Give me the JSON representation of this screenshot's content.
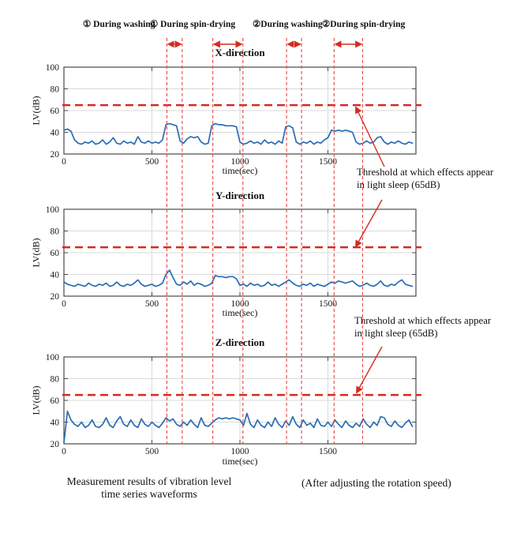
{
  "colors": {
    "waveform": "#2b6cb5",
    "threshold": "#d42b20",
    "event_marker": "#ee4444",
    "grid": "#dadada",
    "axis": "#4a4a4a",
    "tick_text": "#1a1a1a"
  },
  "events": [
    {
      "label": "① During washing",
      "start_sec": 585,
      "end_sec": 672
    },
    {
      "label": "① During spin-drying",
      "start_sec": 846,
      "end_sec": 1017
    },
    {
      "label": "②During washing",
      "start_sec": 1265,
      "end_sec": 1350
    },
    {
      "label": "②During spin-drying",
      "start_sec": 1535,
      "end_sec": 1697
    }
  ],
  "annotations": {
    "threshold_note_1": "Threshold at which effects appear\nin light sleep (65dB)",
    "threshold_note_2": "Threshold at which effects appear\nin light sleep (65dB)"
  },
  "captions": {
    "left": "Measurement results of vibration level\ntime series waveforms",
    "right": "(After adjusting the rotation speed)"
  },
  "chart_data": [
    {
      "type": "line",
      "title": "X-direction",
      "xlabel": "time(sec)",
      "ylabel": "LV(dB)",
      "xlim": [
        0,
        2000
      ],
      "ylim": [
        20,
        100
      ],
      "xticks": [
        0,
        500,
        1000,
        1500
      ],
      "yticks": [
        20,
        40,
        60,
        80,
        100
      ],
      "grid": true,
      "threshold_db": 65,
      "x_start": 0,
      "x_step": 20,
      "values": [
        42,
        43,
        41,
        33,
        30,
        29,
        31,
        30,
        32,
        29,
        30,
        33,
        29,
        31,
        35,
        30,
        29,
        32,
        30,
        31,
        29,
        36,
        31,
        30,
        32,
        30,
        31,
        30,
        33,
        47,
        48,
        47,
        46,
        32,
        30,
        34,
        36,
        35,
        36,
        31,
        29,
        30,
        46,
        48,
        47,
        47,
        46,
        46,
        46,
        45,
        31,
        29,
        30,
        32,
        30,
        31,
        29,
        33,
        30,
        31,
        29,
        32,
        30,
        45,
        46,
        44,
        31,
        29,
        31,
        30,
        32,
        29,
        31,
        30,
        33,
        35,
        42,
        41,
        42,
        41,
        42,
        41,
        40,
        31,
        29,
        30,
        32,
        30,
        31,
        35,
        36,
        31,
        29,
        31,
        30,
        32,
        30,
        29,
        31,
        30
      ]
    },
    {
      "type": "line",
      "title": "Y-direction",
      "xlabel": "time(sec)",
      "ylabel": "LV(dB)",
      "xlim": [
        0,
        2000
      ],
      "ylim": [
        20,
        100
      ],
      "xticks": [
        0,
        500,
        1000,
        1500
      ],
      "yticks": [
        20,
        40,
        60,
        80,
        100
      ],
      "grid": true,
      "threshold_db": 65,
      "x_start": 0,
      "x_step": 20,
      "values": [
        33,
        31,
        30,
        29,
        31,
        30,
        29,
        32,
        30,
        29,
        31,
        30,
        32,
        29,
        30,
        33,
        30,
        29,
        31,
        30,
        32,
        35,
        31,
        29,
        30,
        31,
        29,
        30,
        32,
        40,
        44,
        37,
        31,
        30,
        33,
        31,
        34,
        30,
        32,
        31,
        29,
        30,
        32,
        39,
        38,
        38,
        37,
        38,
        38,
        36,
        30,
        31,
        29,
        32,
        30,
        31,
        29,
        30,
        33,
        30,
        31,
        29,
        31,
        33,
        35,
        32,
        30,
        29,
        31,
        30,
        32,
        29,
        31,
        30,
        29,
        31,
        33,
        32,
        34,
        33,
        32,
        33,
        34,
        31,
        29,
        30,
        32,
        30,
        29,
        31,
        34,
        30,
        29,
        31,
        30,
        33,
        35,
        31,
        30,
        29
      ]
    },
    {
      "type": "line",
      "title": "Z-direction",
      "xlabel": "time(sec)",
      "ylabel": "LV(dB)",
      "xlim": [
        0,
        2000
      ],
      "ylim": [
        20,
        100
      ],
      "xticks": [
        0,
        500,
        1000,
        1500
      ],
      "yticks": [
        20,
        40,
        60,
        80,
        100
      ],
      "grid": true,
      "threshold_db": 65,
      "x_start": 0,
      "x_step": 20,
      "values": [
        21,
        50,
        42,
        38,
        36,
        40,
        35,
        37,
        42,
        36,
        35,
        38,
        44,
        37,
        35,
        41,
        45,
        38,
        36,
        42,
        37,
        35,
        43,
        38,
        36,
        40,
        37,
        35,
        39,
        44,
        41,
        43,
        38,
        36,
        40,
        37,
        42,
        38,
        35,
        44,
        37,
        36,
        39,
        42,
        44,
        43,
        44,
        43,
        44,
        43,
        42,
        37,
        48,
        38,
        35,
        42,
        37,
        35,
        40,
        36,
        44,
        38,
        35,
        41,
        37,
        45,
        38,
        35,
        42,
        37,
        39,
        35,
        43,
        37,
        36,
        40,
        36,
        42,
        38,
        35,
        41,
        37,
        35,
        39,
        36,
        43,
        38,
        35,
        40,
        37,
        45,
        44,
        38,
        36,
        41,
        37,
        35,
        39,
        42,
        36
      ]
    }
  ]
}
